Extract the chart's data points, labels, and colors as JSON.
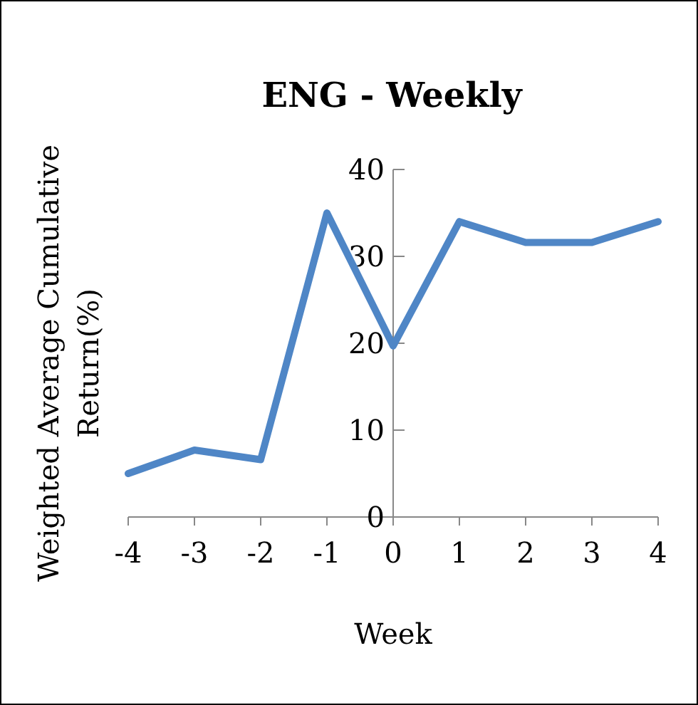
{
  "chart_data": {
    "type": "line",
    "title": "ENG - Weekly",
    "xlabel": "Week",
    "ylabel": "Weighted Average Cumulative Return(%)",
    "x": [
      -4,
      -3,
      -2,
      -1,
      0,
      1,
      2,
      3,
      4
    ],
    "series": [
      {
        "color": "#4f86c6",
        "values": [
          5,
          7.7,
          6.6,
          35,
          19.7,
          34,
          31.6,
          31.6,
          34
        ]
      }
    ],
    "xlim": [
      -4,
      4
    ],
    "xticks": [
      -4,
      -3,
      -2,
      -1,
      0,
      1,
      2,
      3,
      4
    ],
    "ylim": [
      0,
      40
    ],
    "yticks": [
      0,
      10,
      20,
      30,
      40
    ],
    "grid": false,
    "marker": "none",
    "line_style": "solid"
  }
}
